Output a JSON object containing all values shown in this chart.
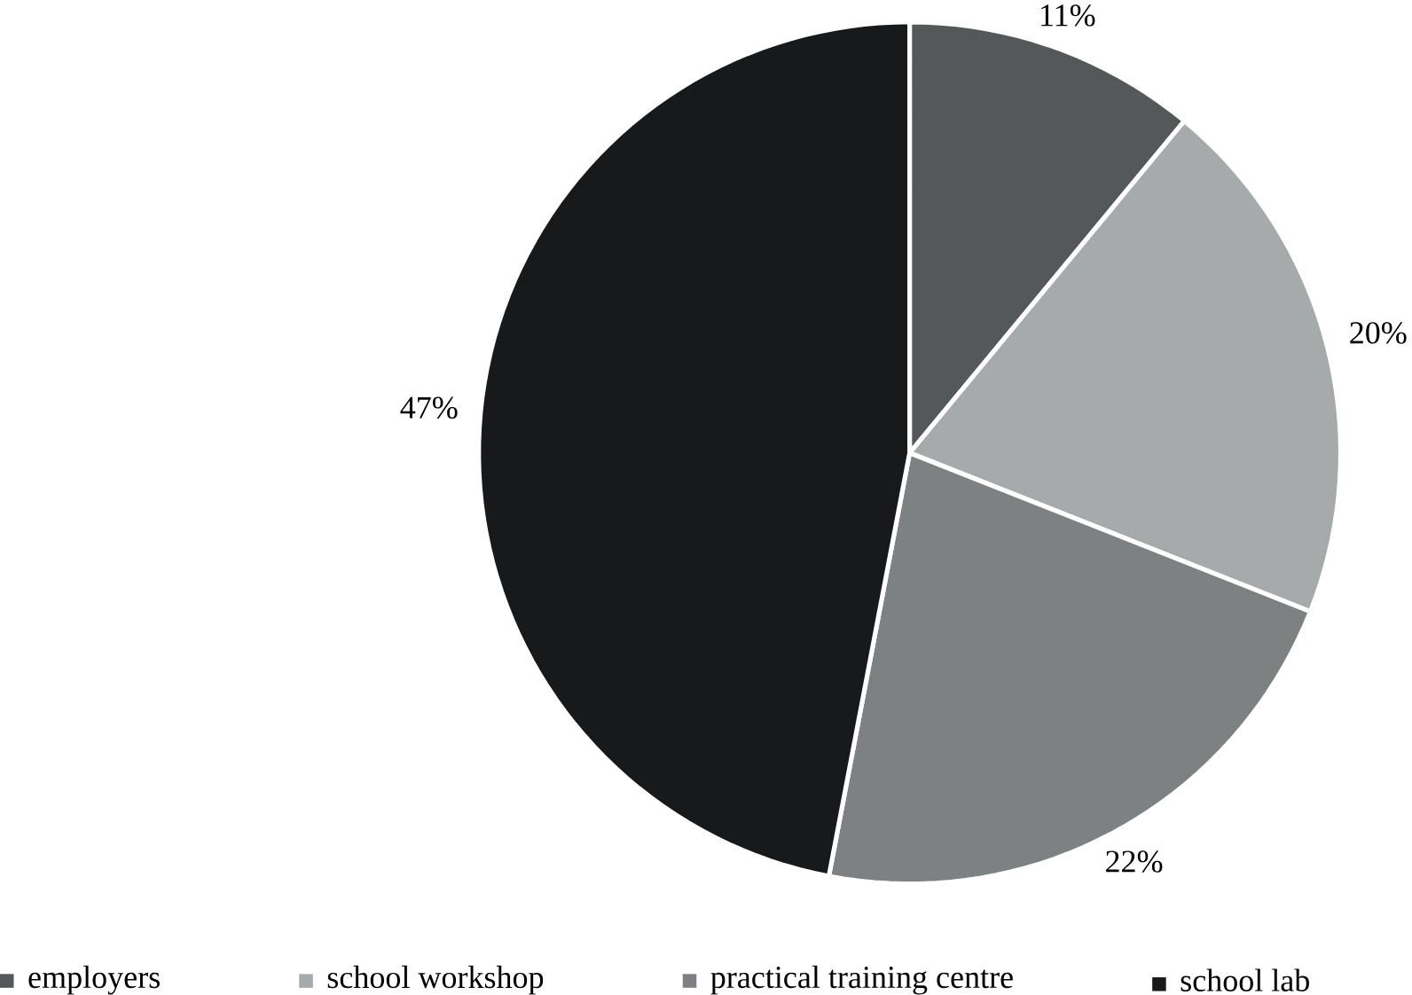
{
  "chart_data": {
    "type": "pie",
    "categories": [
      "employers",
      "school workshop",
      "practical training centre",
      "school lab"
    ],
    "values": [
      11,
      20,
      22,
      47
    ],
    "value_labels": [
      "11%",
      "20%",
      "22%",
      "47%"
    ],
    "colors": [
      "#555859",
      "#a7aaaa",
      "#7e8181",
      "#17191b"
    ],
    "legend": "bottom"
  }
}
